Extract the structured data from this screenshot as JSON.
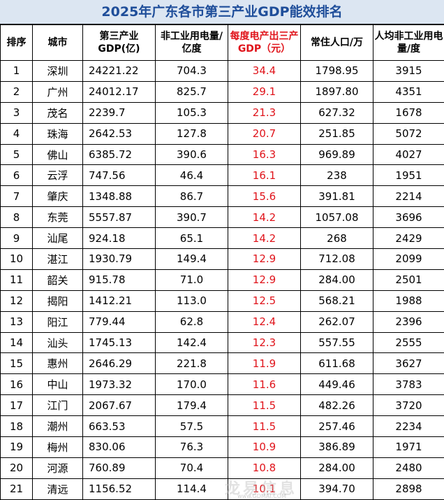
{
  "title": "2025年广东各市第三产业GDP能效排名",
  "headers": {
    "rank": "排序",
    "city": "城市",
    "gdp": "第三产业GDP(亿)",
    "elec": "非工业用电量/亿度",
    "per_kwh": "每度电产出三产GDP（元）",
    "pop": "常住人口/万",
    "per_capita": "人均非工业用电量/度"
  },
  "rows": [
    {
      "rank": "1",
      "city": "深圳",
      "gdp": "24221.22",
      "elec": "704.3",
      "per_kwh": "34.4",
      "pop": "1798.95",
      "per_capita": "3915"
    },
    {
      "rank": "2",
      "city": "广州",
      "gdp": "24012.17",
      "elec": "825.7",
      "per_kwh": "29.1",
      "pop": "1897.80",
      "per_capita": "4351"
    },
    {
      "rank": "3",
      "city": "茂名",
      "gdp": "2239.7",
      "elec": "105.3",
      "per_kwh": "21.3",
      "pop": "627.32",
      "per_capita": "1678"
    },
    {
      "rank": "4",
      "city": "珠海",
      "gdp": "2642.53",
      "elec": "127.8",
      "per_kwh": "20.7",
      "pop": "251.85",
      "per_capita": "5072"
    },
    {
      "rank": "5",
      "city": "佛山",
      "gdp": "6385.72",
      "elec": "390.6",
      "per_kwh": "16.3",
      "pop": "969.89",
      "per_capita": "4027"
    },
    {
      "rank": "6",
      "city": "云浮",
      "gdp": "747.56",
      "elec": "46.4",
      "per_kwh": "16.1",
      "pop": "238",
      "per_capita": "1951"
    },
    {
      "rank": "7",
      "city": "肇庆",
      "gdp": "1348.88",
      "elec": "86.7",
      "per_kwh": "15.6",
      "pop": "391.81",
      "per_capita": "2214"
    },
    {
      "rank": "8",
      "city": "东莞",
      "gdp": "5557.87",
      "elec": "390.7",
      "per_kwh": "14.2",
      "pop": "1057.08",
      "per_capita": "3696"
    },
    {
      "rank": "9",
      "city": "汕尾",
      "gdp": "924.18",
      "elec": "65.1",
      "per_kwh": "14.2",
      "pop": "268",
      "per_capita": "2429"
    },
    {
      "rank": "10",
      "city": "湛江",
      "gdp": "1930.79",
      "elec": "149.4",
      "per_kwh": "12.9",
      "pop": "712.08",
      "per_capita": "2099"
    },
    {
      "rank": "11",
      "city": "韶关",
      "gdp": "915.78",
      "elec": "71.0",
      "per_kwh": "12.9",
      "pop": "284.00",
      "per_capita": "2501"
    },
    {
      "rank": "12",
      "city": "揭阳",
      "gdp": "1412.21",
      "elec": "113.0",
      "per_kwh": "12.5",
      "pop": "568.21",
      "per_capita": "1988"
    },
    {
      "rank": "13",
      "city": "阳江",
      "gdp": "779.44",
      "elec": "62.8",
      "per_kwh": "12.4",
      "pop": "262.07",
      "per_capita": "2396"
    },
    {
      "rank": "14",
      "city": "汕头",
      "gdp": "1745.13",
      "elec": "142.4",
      "per_kwh": "12.3",
      "pop": "557.55",
      "per_capita": "2555"
    },
    {
      "rank": "15",
      "city": "惠州",
      "gdp": "2646.29",
      "elec": "221.8",
      "per_kwh": "11.9",
      "pop": "611.68",
      "per_capita": "3627"
    },
    {
      "rank": "16",
      "city": "中山",
      "gdp": "1973.32",
      "elec": "170.0",
      "per_kwh": "11.6",
      "pop": "449.46",
      "per_capita": "3783"
    },
    {
      "rank": "17",
      "city": "江门",
      "gdp": "2067.67",
      "elec": "179.4",
      "per_kwh": "11.5",
      "pop": "482.26",
      "per_capita": "3720"
    },
    {
      "rank": "18",
      "city": "潮州",
      "gdp": "663.53",
      "elec": "57.5",
      "per_kwh": "11.5",
      "pop": "257.46",
      "per_capita": "2234"
    },
    {
      "rank": "19",
      "city": "梅州",
      "gdp": "830.06",
      "elec": "76.3",
      "per_kwh": "10.9",
      "pop": "386.89",
      "per_capita": "1971"
    },
    {
      "rank": "20",
      "city": "河源",
      "gdp": "760.89",
      "elec": "70.4",
      "per_kwh": "10.8",
      "pop": "284.00",
      "per_capita": "2480"
    },
    {
      "rank": "21",
      "city": "清远",
      "gdp": "1156.52",
      "elec": "114.4",
      "per_kwh": "10.1",
      "pop": "394.70",
      "per_capita": "2898"
    }
  ],
  "watermark": {
    "main": "龙易信息",
    "sub": "www.GDMAI.COM"
  },
  "colors": {
    "title_bg": "#dce6f2",
    "title_text": "#1f4e9a",
    "highlight": "#e0141b"
  }
}
